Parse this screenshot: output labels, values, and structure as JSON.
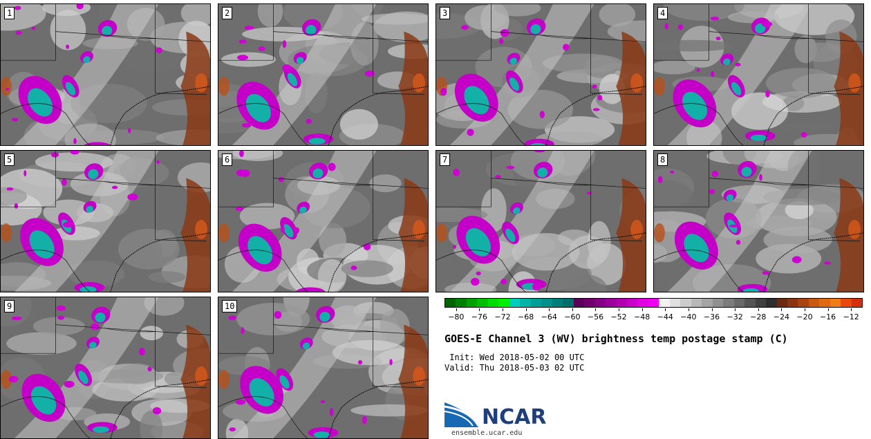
{
  "panels": [
    {
      "label": "1"
    },
    {
      "label": "2"
    },
    {
      "label": "3"
    },
    {
      "label": "4"
    },
    {
      "label": "5"
    },
    {
      "label": "6"
    },
    {
      "label": "7"
    },
    {
      "label": "8"
    },
    {
      "label": "9"
    },
    {
      "label": "10"
    }
  ],
  "colorbar": {
    "colors": [
      "#006400",
      "#008200",
      "#00a000",
      "#00be00",
      "#00dc00",
      "#00f000",
      "#00cdbd",
      "#00b4a8",
      "#009e99",
      "#00908c",
      "#007f7a",
      "#006e6a",
      "#5a005a",
      "#70006e",
      "#860086",
      "#9a009a",
      "#b000b0",
      "#c800c8",
      "#e000e0",
      "#f000f0",
      "#f2f2f2",
      "#e0e0e0",
      "#cccccc",
      "#b8b8b8",
      "#a4a4a4",
      "#909090",
      "#7c7c7c",
      "#686868",
      "#545454",
      "#404040",
      "#2e2e2e",
      "#6a2a10",
      "#8a3510",
      "#a84410",
      "#c85810",
      "#e06a10",
      "#f07c18",
      "#e84810",
      "#d43010"
    ],
    "tick_labels": [
      "−80",
      "−76",
      "−72",
      "−68",
      "−64",
      "−60",
      "−56",
      "−52",
      "−48",
      "−44",
      "−40",
      "−36",
      "−32",
      "−28",
      "−24",
      "−20",
      "−16",
      "−12"
    ],
    "min": -82,
    "max": -10
  },
  "title": "GOES-E Channel 3 (WV) brightness temp postage stamp (C)",
  "init_line": " Init: Wed 2018-05-02 00 UTC",
  "valid_line": "Valid: Thu 2018-05-03 02 UTC",
  "logo": {
    "text": "NCAR",
    "url": "ensemble.ucar.edu"
  }
}
